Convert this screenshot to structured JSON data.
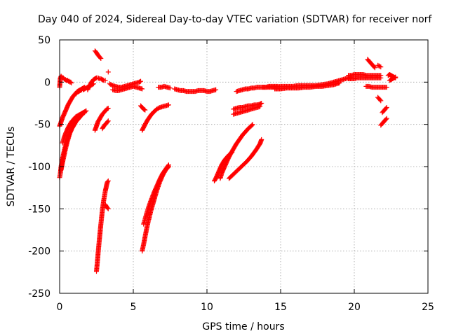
{
  "chart_data": {
    "type": "scatter",
    "title": "Day 040 of 2024, Sidereal Day-to-day VTEC variation (SDTVAR) for receiver norf",
    "xlabel": "GPS time / hours",
    "ylabel": "SDTVAR / TECUs",
    "xlim": [
      0,
      25
    ],
    "ylim": [
      -250,
      50
    ],
    "xticks": [
      0,
      5,
      10,
      15,
      20,
      25
    ],
    "yticks": [
      -250,
      -200,
      -150,
      -100,
      -50,
      0,
      50
    ],
    "xtick_labels": [
      "0",
      "5",
      "10",
      "15",
      "20",
      "25"
    ],
    "ytick_labels": [
      "-250",
      "-200",
      "-150",
      "-100",
      "-50",
      "0",
      "50"
    ],
    "grid": true,
    "marker": "+",
    "color": "#ff0000",
    "series": [
      {
        "x": [
          0.0,
          0.05,
          0.1,
          0.15,
          0.2,
          0.25,
          0.3,
          0.35,
          0.4,
          0.45,
          0.5,
          0.55,
          0.6,
          0.65,
          0.7,
          0.75,
          0.8
        ],
        "y": [
          -6,
          5,
          7,
          6,
          5,
          5,
          4,
          3,
          3,
          2,
          2,
          2,
          1,
          1,
          0,
          0,
          -1
        ]
      },
      {
        "x": [
          0.0,
          0.1,
          0.2,
          0.3,
          0.4,
          0.5,
          0.6,
          0.7,
          0.8,
          0.9,
          1.0,
          1.1,
          1.2,
          1.3,
          1.4,
          1.5,
          1.6,
          1.7
        ],
        "y": [
          -52,
          -47,
          -42,
          -38,
          -34,
          -30,
          -26,
          -23,
          -20,
          -17,
          -15,
          -13,
          -11,
          -10,
          -9,
          -8,
          -7,
          -6
        ]
      },
      {
        "x": [
          0.0,
          0.05,
          0.1,
          0.2,
          0.3,
          0.4,
          0.5,
          0.6,
          0.7,
          0.8,
          0.9,
          1.0,
          1.1,
          1.2,
          1.3,
          1.4,
          1.5
        ],
        "y": [
          -113,
          -108,
          -100,
          -90,
          -82,
          -75,
          -69,
          -64,
          -60,
          -56,
          -53,
          -50,
          -47,
          -45,
          -43,
          -41,
          -39
        ]
      },
      {
        "x": [
          0.1,
          0.2,
          0.3,
          0.4,
          0.5,
          0.6,
          0.7,
          0.8,
          0.9,
          1.0,
          1.1,
          1.2,
          1.3,
          1.4,
          1.5,
          1.6,
          1.7
        ],
        "y": [
          -104,
          -95,
          -87,
          -79,
          -72,
          -66,
          -60,
          -56,
          -52,
          -48,
          -45,
          -43,
          -41,
          -39,
          -38,
          -37,
          -36
        ]
      },
      {
        "x": [
          0.2,
          0.3,
          0.4,
          0.5,
          0.6,
          0.7,
          0.8,
          0.9,
          1.0,
          1.1,
          1.2,
          1.3,
          1.4,
          1.5,
          1.6,
          1.7,
          1.8
        ],
        "y": [
          -72,
          -66,
          -61,
          -57,
          -53,
          -50,
          -47,
          -45,
          -43,
          -41,
          -40,
          -39,
          -38,
          -37,
          -36,
          -35,
          -34
        ]
      },
      {
        "x": [
          1.1,
          1.2,
          1.3,
          1.4,
          1.5,
          1.6,
          1.7,
          1.8,
          1.9,
          2.0,
          2.1,
          2.2,
          2.3
        ],
        "y": [
          -14,
          -12,
          -11,
          -10,
          -9,
          -9,
          -8,
          -7,
          -6,
          -5,
          -4,
          -3,
          -2
        ]
      },
      {
        "x": [
          1.9,
          2.0,
          2.1,
          2.2,
          2.3,
          2.4,
          2.5,
          2.6,
          2.7,
          2.8,
          2.9,
          3.0,
          3.1
        ],
        "y": [
          -9,
          -5,
          -2,
          1,
          3,
          4,
          5,
          5,
          4,
          4,
          3,
          2,
          2
        ]
      },
      {
        "x": [
          2.4,
          2.5,
          2.6,
          2.7,
          2.8
        ],
        "y": [
          37,
          35,
          32,
          30,
          28
        ]
      },
      {
        "x": [
          3.3
        ],
        "y": [
          12
        ]
      },
      {
        "x": [
          2.4,
          2.5,
          2.6,
          2.7,
          2.8,
          2.9,
          3.0,
          3.1,
          3.2,
          3.3
        ],
        "y": [
          -57,
          -52,
          -47,
          -44,
          -41,
          -38,
          -36,
          -34,
          -32,
          -31
        ]
      },
      {
        "x": [
          2.9,
          3.0,
          3.1,
          3.2,
          3.3
        ],
        "y": [
          -55,
          -52,
          -50,
          -48,
          -46
        ]
      },
      {
        "x": [
          2.5,
          2.55,
          2.6,
          2.65,
          2.7,
          2.75,
          2.8,
          2.85,
          2.9,
          2.95,
          3.0,
          3.05,
          3.1,
          3.15,
          3.2,
          3.25,
          3.3
        ],
        "y": [
          -224,
          -215,
          -205,
          -195,
          -186,
          -177,
          -168,
          -160,
          -152,
          -145,
          -139,
          -134,
          -129,
          -125,
          -121,
          -118,
          -117
        ]
      },
      {
        "x": [
          3.1,
          3.2,
          3.3
        ],
        "y": [
          -145,
          -148,
          -150
        ]
      },
      {
        "x": [
          3.4,
          3.6,
          3.8,
          4.0,
          4.2,
          4.4,
          4.6,
          4.8,
          5.0,
          5.2,
          5.4,
          5.5
        ],
        "y": [
          -2,
          -4,
          -5,
          -6,
          -6,
          -5,
          -4,
          -3,
          -2,
          -1,
          0,
          1
        ]
      },
      {
        "x": [
          3.6,
          3.8,
          4.0,
          4.2,
          4.4,
          4.6,
          4.8,
          5.0,
          5.2,
          5.4,
          5.6
        ],
        "y": [
          -9,
          -10,
          -10,
          -9,
          -8,
          -7,
          -6,
          -5,
          -6,
          -7,
          -8
        ]
      },
      {
        "x": [
          5.5,
          5.6,
          5.7,
          5.8
        ],
        "y": [
          -28,
          -30,
          -32,
          -33
        ]
      },
      {
        "x": [
          5.6,
          5.8,
          6.0,
          6.2,
          6.4,
          6.6,
          6.8,
          7.0,
          7.2,
          7.4
        ],
        "y": [
          -57,
          -50,
          -44,
          -39,
          -35,
          -32,
          -30,
          -29,
          -28,
          -27
        ]
      },
      {
        "x": [
          5.6,
          5.7,
          5.8,
          5.9,
          6.0,
          6.2,
          6.4,
          6.6,
          6.8,
          7.0,
          7.2,
          7.4
        ],
        "y": [
          -200,
          -192,
          -183,
          -174,
          -166,
          -152,
          -140,
          -128,
          -118,
          -110,
          -104,
          -100
        ]
      },
      {
        "x": [
          5.7,
          5.8,
          5.9,
          6.0,
          6.2,
          6.4,
          6.6,
          6.8,
          7.0,
          7.2,
          7.4
        ],
        "y": [
          -168,
          -162,
          -156,
          -150,
          -140,
          -131,
          -123,
          -115,
          -108,
          -103,
          -98
        ]
      },
      {
        "x": [
          6.7,
          6.9,
          7.1,
          7.3,
          7.5
        ],
        "y": [
          -6,
          -6,
          -5,
          -6,
          -7
        ]
      },
      {
        "x": [
          7.8,
          8.0,
          8.2,
          8.4,
          8.6,
          8.8,
          9.0,
          9.2,
          9.4,
          9.6,
          9.8,
          10.0,
          10.2,
          10.4,
          10.6
        ],
        "y": [
          -8,
          -9,
          -10,
          -10,
          -11,
          -11,
          -11,
          -11,
          -10,
          -10,
          -10,
          -11,
          -11,
          -10,
          -9
        ]
      },
      {
        "x": [
          10.5,
          10.6,
          10.7,
          10.8,
          10.9,
          11.0,
          11.1,
          11.2,
          11.3,
          11.4,
          11.5,
          11.6,
          11.7
        ],
        "y": [
          -117,
          -114,
          -110,
          -106,
          -102,
          -98,
          -95,
          -92,
          -90,
          -88,
          -86,
          -85,
          -83
        ]
      },
      {
        "x": [
          10.9,
          11.0,
          11.2,
          11.4,
          11.6,
          11.8,
          12.0,
          12.2,
          12.4,
          12.6,
          12.8,
          13.0,
          13.1
        ],
        "y": [
          -114,
          -108,
          -100,
          -92,
          -85,
          -79,
          -73,
          -68,
          -63,
          -59,
          -55,
          -52,
          -50
        ]
      },
      {
        "x": [
          11.5,
          11.8,
          12.1,
          12.4,
          12.7,
          13.0,
          13.3,
          13.6,
          13.7
        ],
        "y": [
          -114,
          -109,
          -104,
          -99,
          -94,
          -88,
          -81,
          -73,
          -68
        ]
      },
      {
        "x": [
          11.8,
          12.0,
          12.2,
          12.4,
          12.6,
          12.8,
          13.0,
          13.2,
          13.4,
          13.6,
          13.7
        ],
        "y": [
          -32,
          -31,
          -30,
          -30,
          -29,
          -28,
          -28,
          -27,
          -27,
          -26,
          -25
        ]
      },
      {
        "x": [
          11.8,
          12.0,
          12.2,
          12.4,
          12.6,
          12.8,
          13.0,
          13.2,
          13.4,
          13.6
        ],
        "y": [
          -38,
          -37,
          -36,
          -35,
          -34,
          -33,
          -32,
          -31,
          -30,
          -29
        ]
      },
      {
        "x": [
          12.0,
          12.2,
          12.4,
          12.6,
          12.8,
          13.0,
          13.2,
          13.4,
          13.6,
          13.8,
          14.0,
          14.2,
          14.4,
          14.6,
          14.8
        ],
        "y": [
          -11,
          -10,
          -9,
          -8,
          -8,
          -7,
          -7,
          -6,
          -6,
          -6,
          -6,
          -5,
          -5,
          -5,
          -5
        ]
      },
      {
        "x": [
          13.8,
          14.2,
          14.6,
          15.0,
          15.4,
          15.8,
          16.2,
          16.6,
          17.0,
          17.4,
          17.8,
          18.2,
          18.6,
          19.0,
          19.4,
          19.8
        ],
        "y": [
          -6,
          -6,
          -6,
          -5,
          -5,
          -5,
          -4,
          -4,
          -4,
          -4,
          -3,
          -2,
          0,
          2,
          4,
          6
        ]
      },
      {
        "x": [
          14.6,
          15.0,
          15.4,
          15.8,
          16.2,
          16.6,
          17.0,
          17.4,
          17.8,
          18.2,
          18.6,
          19.0
        ],
        "y": [
          -8,
          -8,
          -7,
          -7,
          -7,
          -6,
          -6,
          -5,
          -5,
          -4,
          -3,
          -1
        ]
      },
      {
        "x": [
          19.6,
          19.8,
          20.0,
          20.2,
          20.4,
          20.6,
          20.8,
          21.0,
          21.2,
          21.4,
          21.6,
          21.8
        ],
        "y": [
          8,
          8,
          9,
          9,
          9,
          9,
          8,
          8,
          8,
          8,
          8,
          8
        ]
      },
      {
        "x": [
          19.6,
          19.8,
          20.0,
          20.2,
          20.4,
          20.6,
          20.8,
          21.0,
          21.2,
          21.4,
          21.6,
          21.8
        ],
        "y": [
          4,
          4,
          4,
          5,
          5,
          5,
          5,
          5,
          5,
          5,
          5,
          5
        ]
      },
      {
        "x": [
          20.9,
          21.0,
          21.1,
          21.2,
          21.3,
          21.4
        ],
        "y": [
          27,
          25,
          23,
          21,
          19,
          17
        ]
      },
      {
        "x": [
          21.6,
          21.8
        ],
        "y": [
          20,
          18
        ]
      },
      {
        "x": [
          20.8,
          21.0,
          21.2,
          21.4,
          21.6,
          21.8,
          22.0,
          22.2
        ],
        "y": [
          -5,
          -5,
          -6,
          -6,
          -6,
          -6,
          -6,
          -6
        ]
      },
      {
        "x": [
          21.6,
          21.7,
          21.8
        ],
        "y": [
          -18,
          -20,
          -22
        ]
      },
      {
        "x": [
          21.8,
          21.9,
          22.0,
          22.1,
          22.2
        ],
        "y": [
          -51,
          -49,
          -47,
          -45,
          -43
        ]
      },
      {
        "x": [
          21.9,
          22.0,
          22.1,
          22.2
        ],
        "y": [
          -36,
          -34,
          -32,
          -30
        ]
      },
      {
        "x": [
          22.3,
          22.4,
          22.5,
          22.6,
          22.7,
          22.8
        ],
        "y": [
          8,
          9,
          8,
          7,
          6,
          5
        ]
      },
      {
        "x": [
          22.4,
          22.5,
          22.6,
          22.7,
          22.8
        ],
        "y": [
          2,
          3,
          4,
          5,
          6
        ]
      }
    ]
  }
}
